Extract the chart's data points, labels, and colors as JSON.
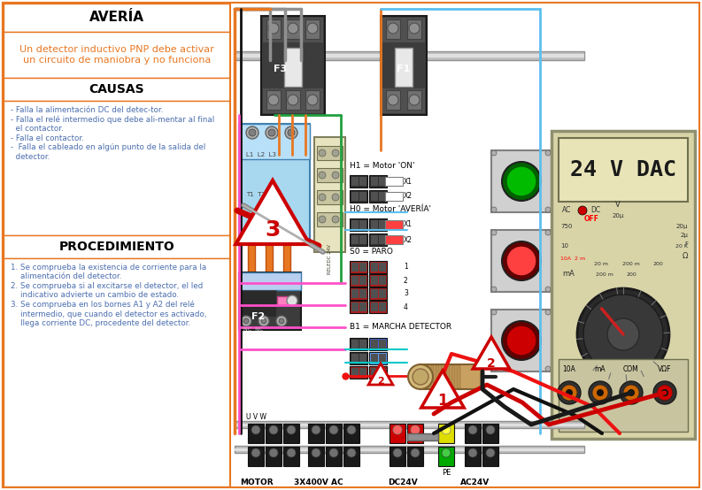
{
  "title": "AVERÍA",
  "subtitle": "Un detector inductivo PNP debe activar\nun circuito de maniobra y no funciona",
  "causas_title": "CAUSAS",
  "causas_text": "- Falla la alimentación DC del detec-tor.\n- Falla el relé intermedio que debe ali-mentar al final\n  el contactor.\n- Falla el contactor.\n-  Falla el cableado en algún punto de la salida del\n  detector.",
  "procedimiento_title": "PROCEDIMIENTO",
  "procedimiento_text": "1. Se comprueba la existencia de corriente para la\n    alimentación del detector.\n2. Se comprueba si al excitarse el detector, el led\n    indicativo advierte un cambio de estado.\n3. Se comprueba en los bornes A1 y A2 del relé\n    intermedio, que cuando el detector es activado,\n    llega corriente DC, procedente del detector.",
  "border_color": "#E87722",
  "title_color": "#000000",
  "subtitle_color": "#E87722",
  "text_color": "#4B6EAF",
  "bg_color": "#FFFFFF",
  "labels": {
    "H1": "H1 = Motor 'ON'",
    "H0": "H0 = Motor 'AVERÍA'",
    "S0": "S0 = PARO",
    "B1": "B1 = MARCHA DETECTOR",
    "F3": "F3",
    "F1": "F1",
    "F2": "F2",
    "MOTOR": "MOTOR",
    "AC400": "3X400V AC",
    "DC24V": "DC24V",
    "AC24V": "AC24V",
    "PE": "PE",
    "DAC": "24 V DAC",
    "UVW": "U V W"
  },
  "wire_colors": {
    "gray": "#909090",
    "orange": "#E87722",
    "blue": "#5BBFEF",
    "green": "#22A040",
    "pink": "#FF50C8",
    "red": "#EE1111",
    "black": "#111111",
    "brown": "#8B4513",
    "cyan": "#00C8C8"
  }
}
